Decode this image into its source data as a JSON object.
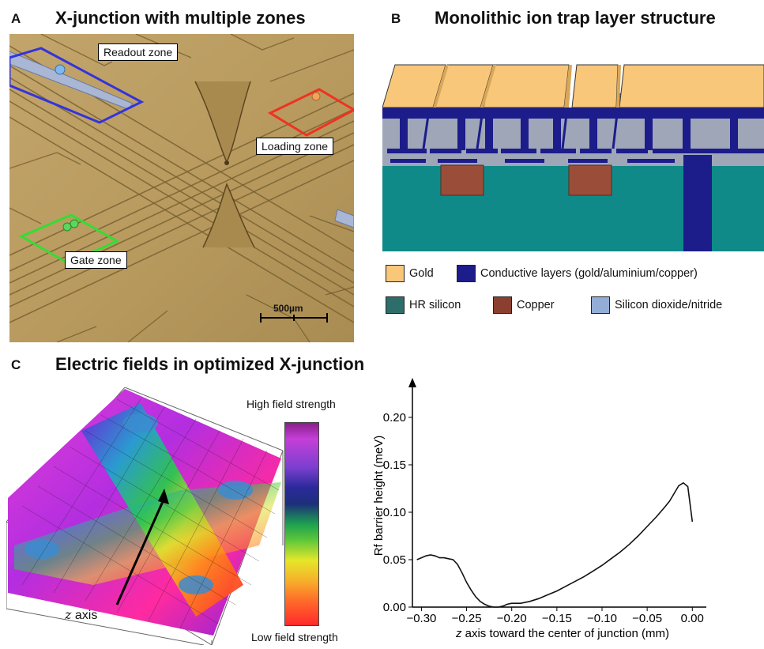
{
  "panel_a": {
    "letter": "A",
    "title": "X-junction with multiple zones",
    "zones": {
      "readout": "Readout zone",
      "loading": "Loading zone",
      "gate": "Gate zone"
    },
    "scale_bar": "500µm",
    "colors": {
      "readout": "#3333dd",
      "loading": "#ee3322",
      "gate": "#33dd33",
      "substrate": "#b89a5e"
    }
  },
  "panel_b": {
    "letter": "B",
    "title": "Monolithic ion trap layer structure",
    "legend": [
      {
        "label": "Gold",
        "color": "#f9c77a"
      },
      {
        "label": "Conductive layers (gold/aluminium/copper)",
        "color": "#1c1c8a"
      },
      {
        "label": "HR silicon",
        "color": "#2e6e6a"
      },
      {
        "label": "Copper",
        "color": "#8b3f2f"
      },
      {
        "label": "Silicon dioxide/nitride",
        "color": "#93aed6"
      }
    ]
  },
  "panel_c": {
    "letter": "C",
    "title": "Electric fields in optimized X-junction",
    "colorbar_high": "High field strength",
    "colorbar_low": "Low field strength",
    "z_axis_italic": "z",
    "z_axis_rest": " axis"
  },
  "chart_data": {
    "type": "line",
    "title": "",
    "xlabel_italic": "z",
    "xlabel_rest": " axis toward the center of junction (mm)",
    "ylabel": "Rf barrier height (meV)",
    "xlim": [
      -0.31,
      0.005
    ],
    "ylim": [
      0,
      0.235
    ],
    "x_ticks": [
      "−0.30",
      "−0.25",
      "−0.20",
      "−0.15",
      "−0.10",
      "−0.05",
      "0.00"
    ],
    "x_tick_values": [
      -0.3,
      -0.25,
      -0.2,
      -0.15,
      -0.1,
      -0.05,
      0.0
    ],
    "y_ticks": [
      "0.00",
      "0.05",
      "0.10",
      "0.15",
      "0.20"
    ],
    "y_tick_values": [
      0.0,
      0.05,
      0.1,
      0.15,
      0.2
    ],
    "grid": false,
    "series": [
      {
        "color": "#111111",
        "x": [
          -0.305,
          -0.3,
          -0.295,
          -0.29,
          -0.285,
          -0.28,
          -0.275,
          -0.27,
          -0.265,
          -0.26,
          -0.255,
          -0.25,
          -0.245,
          -0.24,
          -0.235,
          -0.23,
          -0.225,
          -0.22,
          -0.215,
          -0.21,
          -0.205,
          -0.2,
          -0.195,
          -0.19,
          -0.18,
          -0.17,
          -0.16,
          -0.15,
          -0.14,
          -0.13,
          -0.12,
          -0.11,
          -0.1,
          -0.09,
          -0.08,
          -0.07,
          -0.06,
          -0.05,
          -0.04,
          -0.03,
          -0.025,
          -0.02,
          -0.015,
          -0.01,
          -0.005,
          0.0
        ],
        "y": [
          0.05,
          0.052,
          0.054,
          0.055,
          0.054,
          0.052,
          0.052,
          0.051,
          0.05,
          0.045,
          0.036,
          0.026,
          0.018,
          0.011,
          0.006,
          0.003,
          0.001,
          0.0,
          0.0,
          0.001,
          0.003,
          0.004,
          0.004,
          0.004,
          0.006,
          0.009,
          0.013,
          0.017,
          0.022,
          0.027,
          0.032,
          0.038,
          0.044,
          0.051,
          0.058,
          0.066,
          0.075,
          0.085,
          0.095,
          0.106,
          0.112,
          0.12,
          0.128,
          0.131,
          0.127,
          0.09
        ]
      }
    ]
  }
}
